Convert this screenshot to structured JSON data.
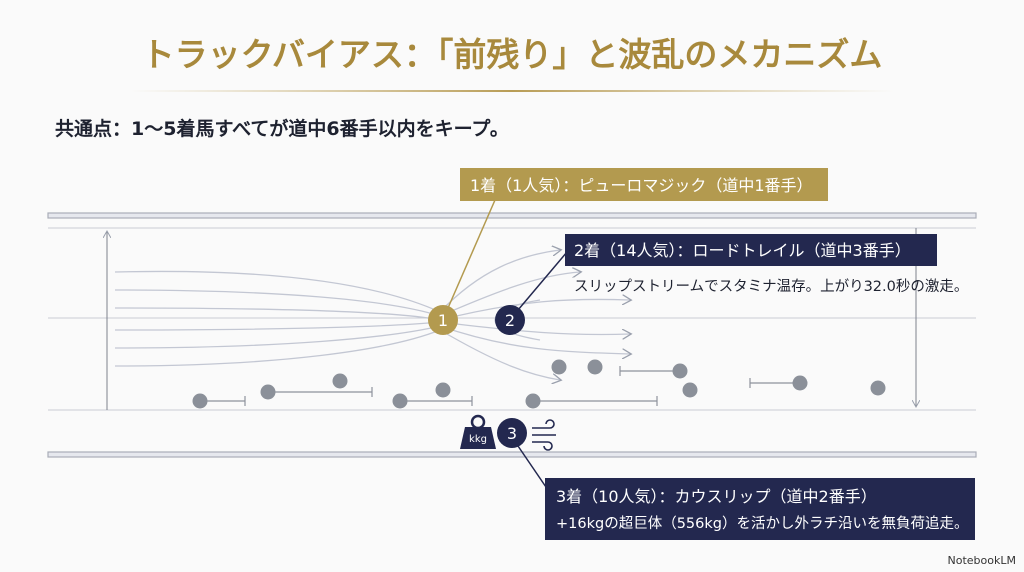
{
  "header": {
    "title": "トラックバイアス：「前残り」と波乱のメカニズム",
    "subtitle": "共通点：1〜5着馬すべてが道中6番手以内をキープ。"
  },
  "callouts": [
    {
      "title": "1着（1人気）：ピューロマジック（道中1番手）"
    },
    {
      "title": "2着（14人気）：ロードトレイル（道中3番手）",
      "description": "スリップストリームでスタミナ温存。上がり32.0秒の激走。"
    },
    {
      "title": "3着（10人気）：カウスリップ（道中2番手）",
      "description": "+16kgの超巨体（556kg）を活かし外ラチ沿いを無負荷追走。"
    }
  ],
  "markers": [
    "1",
    "2",
    "3"
  ],
  "weight_icon": "kkg",
  "watermark": "NotebookLM"
}
